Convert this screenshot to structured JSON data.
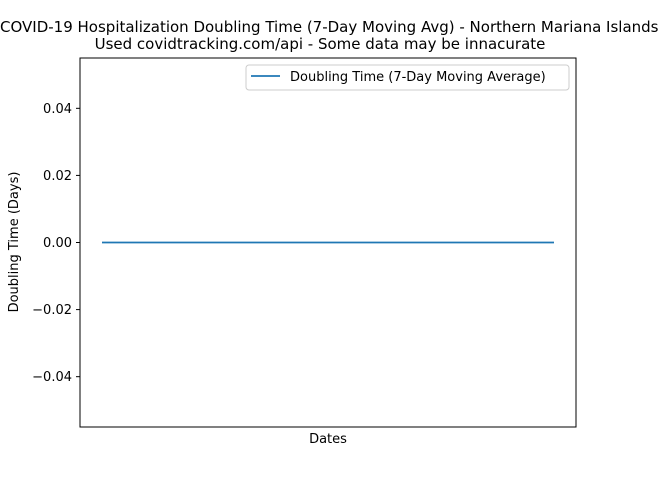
{
  "chart_data": {
    "type": "line",
    "title": "COVID-19 Hospitalization Doubling Time (7-Day Moving Avg) - Northern Mariana Islands",
    "subtitle": "Used covidtracking.com/api - Some data may be innacurate",
    "xlabel": "Dates",
    "ylabel": "Doubling Time (Days)",
    "ylim": [
      -0.055,
      0.055
    ],
    "yticks": [
      -0.04,
      -0.02,
      0.0,
      0.02,
      0.04
    ],
    "ytick_labels": [
      "−0.04",
      "−0.02",
      "0.00",
      "0.02",
      "0.04"
    ],
    "xticks_visible": false,
    "grid": false,
    "legend_position": "top-right",
    "series": [
      {
        "name": "Doubling Time (7-Day Moving Average)",
        "color": "#1f77b4",
        "values": [
          0,
          0
        ]
      }
    ]
  }
}
